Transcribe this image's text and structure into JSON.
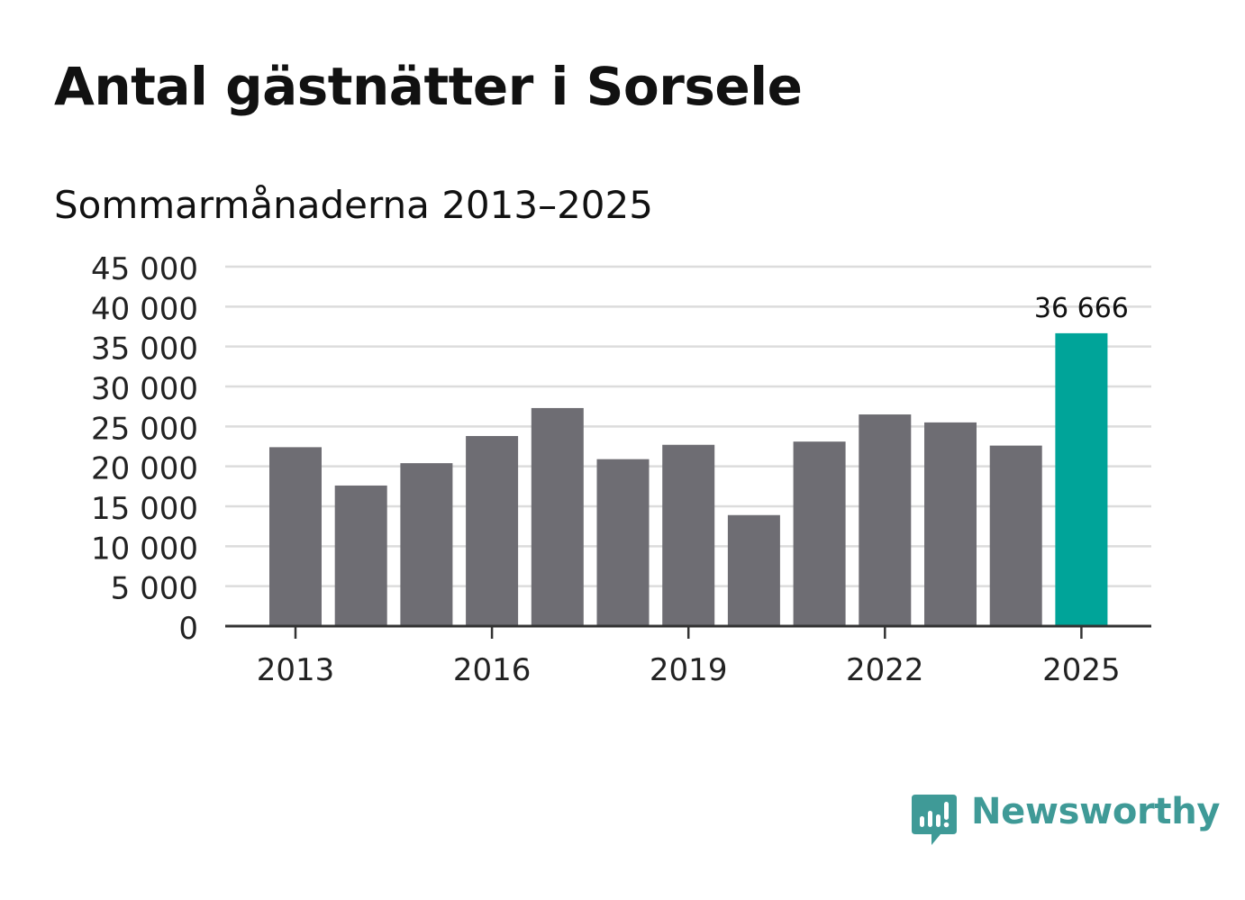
{
  "title": "Antal gästnätter i Sorsele",
  "subtitle": "Sommarmånaderna 2013–2025",
  "brand": {
    "name": "Newsworthy",
    "color": "#3f9a97",
    "icon": "newsworthy-logo-icon"
  },
  "colors": {
    "bar": "#6e6d73",
    "highlight": "#00a499",
    "grid": "#dcdcdc",
    "axis": "#333333"
  },
  "chart_data": {
    "type": "bar",
    "categories": [
      "2013",
      "2014",
      "2015",
      "2016",
      "2017",
      "2018",
      "2019",
      "2020",
      "2021",
      "2022",
      "2023",
      "2024",
      "2025"
    ],
    "values": [
      22400,
      17600,
      20400,
      23800,
      27300,
      20900,
      22700,
      13900,
      23100,
      26500,
      25500,
      22600,
      36666
    ],
    "highlight_index": 12,
    "data_labels": [
      {
        "category": "2025",
        "text": "36 666"
      }
    ],
    "x_tick_labels": [
      "2013",
      "2016",
      "2019",
      "2022",
      "2025"
    ],
    "y_tick_labels": [
      "0",
      "5 000",
      "10 000",
      "15 000",
      "20 000",
      "25 000",
      "30 000",
      "35 000",
      "40 000",
      "45 000"
    ],
    "y_ticks": [
      0,
      5000,
      10000,
      15000,
      20000,
      25000,
      30000,
      35000,
      40000,
      45000
    ],
    "ylim": [
      0,
      45000
    ],
    "grid": true,
    "xlabel": "",
    "ylabel": ""
  }
}
